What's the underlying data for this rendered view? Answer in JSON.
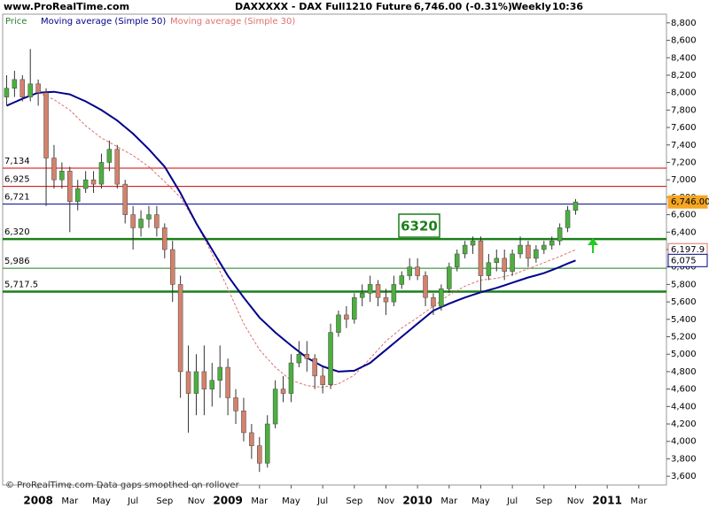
{
  "chart_data": {
    "type": "candlestick",
    "site": "www.ProRealTime.com",
    "title": "DAXXXXX - DAX Full1210 Future",
    "quote": "6,746.00 (-0.31%)",
    "period": "Weekly",
    "time": "10:36",
    "footer": "© ProRealTime.com  Data gaps smoothed on rollover",
    "annotation": "6320",
    "categories": [
      null,
      null,
      null,
      null,
      "2008",
      null,
      null,
      null,
      "Mar",
      null,
      null,
      null,
      "May",
      null,
      null,
      null,
      "Jul",
      null,
      null,
      null,
      "Sep",
      null,
      null,
      null,
      "Nov",
      null,
      null,
      null,
      "2009",
      null,
      null,
      null,
      "Mar",
      null,
      null,
      null,
      "May",
      null,
      null,
      null,
      "Jul",
      null,
      null,
      null,
      "Sep",
      null,
      null,
      null,
      "Nov",
      null,
      null,
      null,
      "2010",
      null,
      null,
      null,
      "Mar",
      null,
      null,
      null,
      "May",
      null,
      null,
      null,
      "Jul",
      null,
      null,
      null,
      "Sep",
      null,
      null,
      null,
      "Nov",
      null,
      null,
      null,
      "2011",
      null,
      null,
      null,
      "Mar",
      null,
      null,
      null
    ],
    "series": [
      {
        "name": "Price",
        "type": "candlestick",
        "up_color": "#4caf3f",
        "down_color": "#d4826c",
        "color": "#2e7d32",
        "last_label": "6,746.00",
        "label_color": "#f5a623",
        "open": [
          7950,
          8050,
          8150,
          7950,
          8100,
          8000,
          7250,
          7000,
          7100,
          6750,
          6900,
          7000,
          6950,
          7200,
          7350,
          6950,
          6600,
          6450,
          6550,
          6600,
          6450,
          6200,
          5800,
          4800,
          4550,
          4800,
          4600,
          4700,
          4850,
          4500,
          4350,
          4100,
          3950,
          3750,
          4200,
          4600,
          4550,
          4900,
          5000,
          4950,
          4750,
          4650,
          5250,
          5450,
          5400,
          5650,
          5700,
          5800,
          5650,
          5600,
          5800,
          5900,
          6000,
          5900,
          5650,
          5550,
          5750,
          6000,
          6150,
          6250,
          6300,
          5900,
          6050,
          6100,
          5950,
          6150,
          6250,
          6100,
          6200,
          6250,
          6300,
          6450,
          6650,
          null,
          null,
          null,
          null,
          null,
          null,
          null,
          null,
          null,
          null,
          null
        ],
        "high": [
          8200,
          8250,
          8200,
          8500,
          8150,
          8050,
          7400,
          7200,
          7150,
          7000,
          7100,
          7100,
          7300,
          7450,
          7400,
          7000,
          6700,
          6650,
          6700,
          6700,
          6500,
          6300,
          5900,
          5100,
          5000,
          5100,
          4900,
          5100,
          4950,
          4600,
          4500,
          4200,
          4050,
          4300,
          4700,
          4750,
          5000,
          5150,
          5150,
          5000,
          4850,
          5350,
          5500,
          5550,
          5700,
          5800,
          5900,
          5850,
          5750,
          5900,
          5950,
          6100,
          6100,
          5950,
          5700,
          5800,
          6050,
          6200,
          6300,
          6350,
          6350,
          6150,
          6200,
          6200,
          6200,
          6350,
          6300,
          6250,
          6300,
          6350,
          6500,
          6700,
          6780,
          null,
          null,
          null,
          null,
          null,
          null,
          null,
          null,
          null,
          null,
          null
        ],
        "low": [
          7850,
          7950,
          7900,
          7900,
          7850,
          6700,
          6900,
          6900,
          6400,
          6650,
          6850,
          6850,
          6900,
          7100,
          6900,
          6500,
          6200,
          6350,
          6450,
          6350,
          6100,
          5600,
          4500,
          4100,
          4300,
          4300,
          4400,
          4500,
          4300,
          4200,
          4000,
          3800,
          3650,
          3700,
          4150,
          4450,
          4450,
          4850,
          4800,
          4600,
          4550,
          4600,
          5200,
          5300,
          5350,
          5550,
          5600,
          5550,
          5450,
          5550,
          5750,
          5850,
          5850,
          5550,
          5450,
          5500,
          5700,
          5950,
          6100,
          6150,
          5700,
          5850,
          5950,
          5850,
          5900,
          6100,
          6000,
          6050,
          6150,
          6200,
          6250,
          6400,
          6600,
          null,
          null,
          null,
          null,
          null,
          null,
          null,
          null,
          null,
          null,
          null
        ],
        "close": [
          8050,
          8150,
          7950,
          8100,
          8000,
          7250,
          7000,
          7100,
          6750,
          6900,
          7000,
          6950,
          7200,
          7350,
          6950,
          6600,
          6450,
          6550,
          6600,
          6450,
          6200,
          5800,
          4800,
          4550,
          4800,
          4600,
          4700,
          4850,
          4500,
          4350,
          4100,
          3950,
          3750,
          4200,
          4600,
          4550,
          4900,
          5000,
          4950,
          4750,
          4650,
          5250,
          5450,
          5400,
          5650,
          5700,
          5800,
          5650,
          5600,
          5800,
          5900,
          6000,
          5900,
          5650,
          5550,
          5750,
          6000,
          6150,
          6250,
          6300,
          5900,
          6050,
          6100,
          5950,
          6150,
          6250,
          6100,
          6200,
          6250,
          6300,
          6450,
          6650,
          6746,
          null,
          null,
          null,
          null,
          null,
          null,
          null,
          null,
          null,
          null,
          null
        ]
      },
      {
        "name": "Moving average (Simple 50)",
        "type": "line",
        "color": "#00008b",
        "width": 2,
        "dashed": false,
        "last_label": "6,075",
        "values": [
          7850,
          7890,
          7930,
          7965,
          8000,
          8005,
          8010,
          7995,
          7980,
          7940,
          7900,
          7850,
          7800,
          7740,
          7680,
          7605,
          7530,
          7440,
          7350,
          7250,
          7150,
          7000,
          6850,
          6675,
          6500,
          6350,
          6200,
          6050,
          5900,
          5775,
          5650,
          5535,
          5420,
          5335,
          5250,
          5175,
          5100,
          5030,
          4960,
          4910,
          4860,
          4830,
          4800,
          4805,
          4810,
          4855,
          4900,
          4975,
          5050,
          5125,
          5200,
          5275,
          5350,
          5425,
          5500,
          5540,
          5580,
          5615,
          5650,
          5680,
          5710,
          5735,
          5760,
          5790,
          5820,
          5850,
          5880,
          5905,
          5930,
          5965,
          6000,
          6040,
          6075,
          null,
          null,
          null,
          null,
          null,
          null,
          null,
          null,
          null,
          null,
          null
        ]
      },
      {
        "name": "Moving average (Simple 30)",
        "type": "line",
        "color": "#e07070",
        "width": 1,
        "dashed": true,
        "last_label": "6,197.9",
        "values": [
          null,
          null,
          null,
          null,
          8000,
          7960,
          7920,
          7860,
          7800,
          7710,
          7620,
          7550,
          7480,
          7430,
          7380,
          7330,
          7280,
          7215,
          7150,
          7065,
          6980,
          6890,
          6800,
          6650,
          6500,
          6325,
          6150,
          5950,
          5750,
          5550,
          5350,
          5200,
          5050,
          4950,
          4850,
          4775,
          4700,
          4670,
          4640,
          4630,
          4620,
          4640,
          4660,
          4710,
          4760,
          4855,
          4950,
          5050,
          5150,
          5225,
          5300,
          5360,
          5420,
          5485,
          5550,
          5615,
          5680,
          5730,
          5780,
          5815,
          5850,
          5860,
          5870,
          5890,
          5910,
          5945,
          5980,
          6015,
          6050,
          6085,
          6120,
          6160,
          6197.9,
          null,
          null,
          null,
          null,
          null,
          null,
          null,
          null,
          null,
          null,
          null
        ]
      }
    ],
    "levels": [
      {
        "value": 7134,
        "label": "7,134",
        "color": "#d00000",
        "width": 1
      },
      {
        "value": 6925,
        "label": "6,925",
        "color": "#d00000",
        "width": 1
      },
      {
        "value": 6721,
        "label": "6,721",
        "color": "#00008b",
        "width": 1
      },
      {
        "value": 6320,
        "label": "6,320",
        "color": "#1a7f1a",
        "width": 2.5
      },
      {
        "value": 5986,
        "label": "5,986",
        "color": "#1a7f1a",
        "width": 1
      },
      {
        "value": 5717.5,
        "label": "5,717.5",
        "color": "#1a7f1a",
        "width": 2.5
      }
    ],
    "ylim": [
      3500,
      8900
    ],
    "yticks": [
      {
        "value": 3600,
        "label": "3,600"
      },
      {
        "value": 3800,
        "label": "3,800"
      },
      {
        "value": 4000,
        "label": "4,000"
      },
      {
        "value": 4200,
        "label": "4,200"
      },
      {
        "value": 4400,
        "label": "4,400"
      },
      {
        "value": 4600,
        "label": "4,600"
      },
      {
        "value": 4800,
        "label": "4,800"
      },
      {
        "value": 5000,
        "label": "5,000"
      },
      {
        "value": 5200,
        "label": "5,200"
      },
      {
        "value": 5400,
        "label": "5,400"
      },
      {
        "value": 5600,
        "label": "5,600"
      },
      {
        "value": 5800,
        "label": "5,800"
      },
      {
        "value": 6000,
        "label": "6,000"
      },
      {
        "value": 6200,
        "label": "6,200"
      },
      {
        "value": 6400,
        "label": "6,400"
      },
      {
        "value": 6600,
        "label": "6,600"
      },
      {
        "value": 6800,
        "label": "6,800"
      },
      {
        "value": 7000,
        "label": "7,000"
      },
      {
        "value": 7200,
        "label": "7,200"
      },
      {
        "value": 7400,
        "label": "7,400"
      },
      {
        "value": 7600,
        "label": "7,600"
      },
      {
        "value": 7800,
        "label": "7,800"
      },
      {
        "value": 8000,
        "label": "8,000"
      },
      {
        "value": 8200,
        "label": "8,200"
      },
      {
        "value": 8400,
        "label": "8,400"
      },
      {
        "value": 8600,
        "label": "8,600"
      },
      {
        "value": 8800,
        "label": "8,800"
      }
    ],
    "grid": false
  }
}
